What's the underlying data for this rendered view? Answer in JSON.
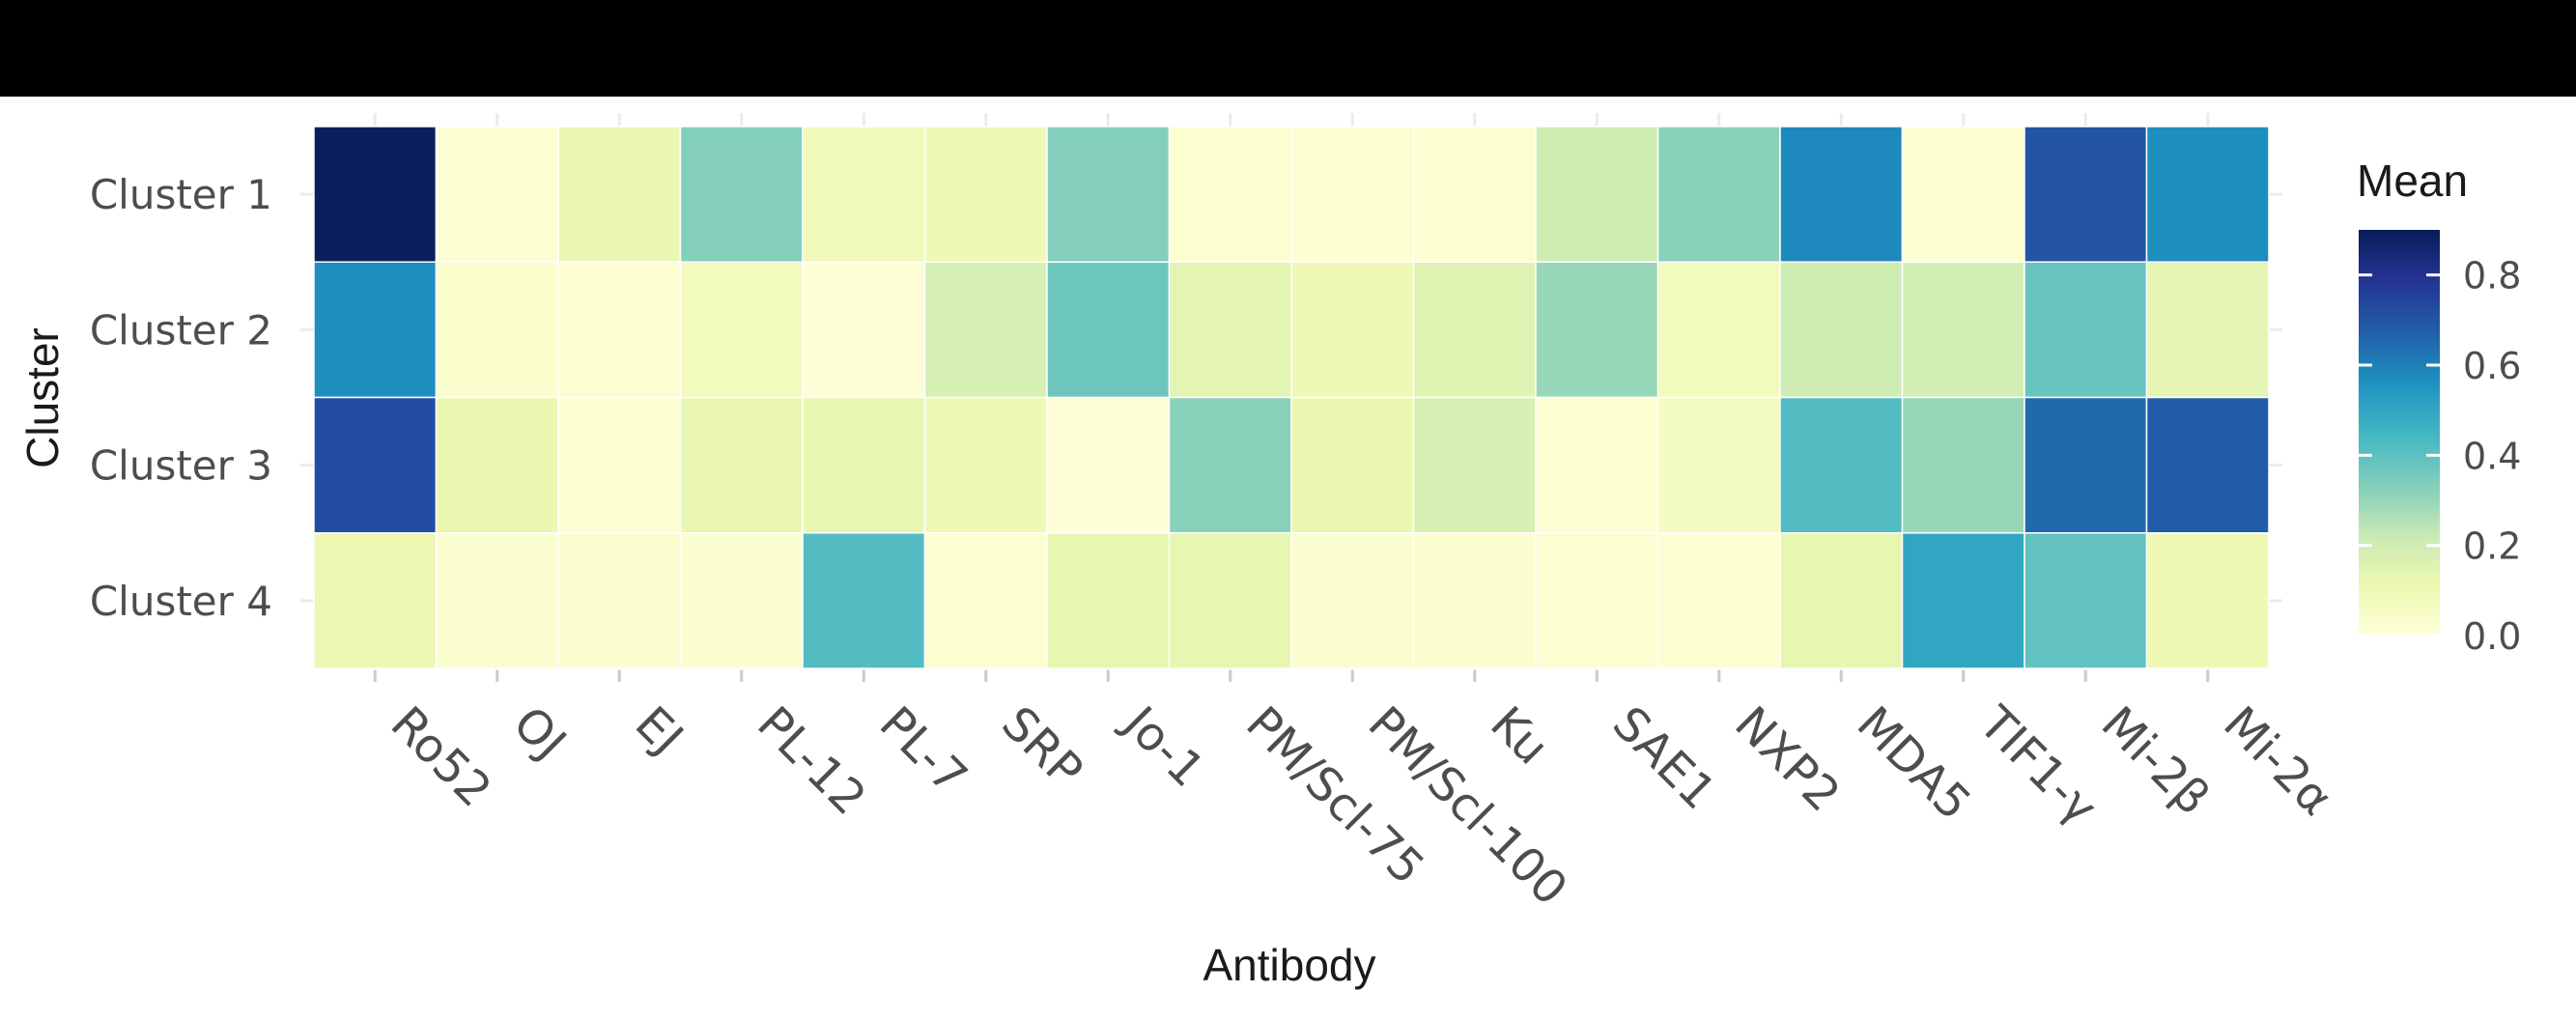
{
  "chart_data": {
    "type": "heatmap",
    "title": "",
    "xlabel": "Antibody",
    "ylabel": "Cluster",
    "x_categories": [
      "Ro52",
      "OJ",
      "EJ",
      "PL-12",
      "PL-7",
      "SRP",
      "Jo-1",
      "PM/Scl-75",
      "PM/Scl-100",
      "Ku",
      "SAE1",
      "NXP2",
      "MDA5",
      "TIF1-γ",
      "Mi-2β",
      "Mi-2α"
    ],
    "y_categories": [
      "Cluster 1",
      "Cluster 2",
      "Cluster 3",
      "Cluster 4"
    ],
    "values": [
      [
        0.89,
        0.02,
        0.12,
        0.33,
        0.09,
        0.1,
        0.33,
        0.02,
        0.02,
        0.02,
        0.2,
        0.32,
        0.58,
        0.02,
        0.7,
        0.57
      ],
      [
        0.57,
        0.04,
        0.02,
        0.08,
        0.01,
        0.18,
        0.37,
        0.14,
        0.1,
        0.15,
        0.3,
        0.08,
        0.2,
        0.19,
        0.38,
        0.14
      ],
      [
        0.72,
        0.12,
        0.02,
        0.12,
        0.13,
        0.11,
        0.01,
        0.32,
        0.12,
        0.18,
        0.02,
        0.07,
        0.42,
        0.3,
        0.65,
        0.68
      ],
      [
        0.11,
        0.03,
        0.03,
        0.03,
        0.42,
        0.02,
        0.13,
        0.13,
        0.03,
        0.03,
        0.02,
        0.02,
        0.13,
        0.5,
        0.39,
        0.1
      ]
    ],
    "legend": {
      "title": "Mean",
      "ticks": [
        "0.8",
        "0.6",
        "0.4",
        "0.2",
        "0.0"
      ],
      "tick_values": [
        0.8,
        0.6,
        0.4,
        0.2,
        0.0
      ],
      "range": [
        0,
        0.9
      ],
      "placement": "right"
    },
    "colorscale": [
      "#ffffd9",
      "#edf8b1",
      "#c7e9b4",
      "#7fcdbb",
      "#41b6c4",
      "#1d91c0",
      "#225ea8",
      "#253494",
      "#081d58"
    ],
    "grid": true
  }
}
